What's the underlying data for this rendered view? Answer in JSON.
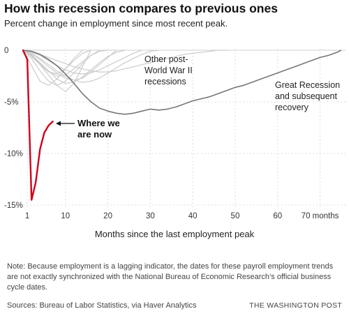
{
  "chart_data": {
    "type": "line",
    "title": "How this recession compares to previous ones",
    "subtitle": "Percent change in employment since most recent peak.",
    "xlabel": "Months since the last employment peak",
    "ylabel": "",
    "xlim": [
      0,
      76
    ],
    "ylim": [
      -15,
      0
    ],
    "x_ticks": [
      {
        "value": 1,
        "label": "1"
      },
      {
        "value": 10,
        "label": "10"
      },
      {
        "value": 20,
        "label": "20"
      },
      {
        "value": 30,
        "label": "30"
      },
      {
        "value": 40,
        "label": "40"
      },
      {
        "value": 50,
        "label": "50"
      },
      {
        "value": 60,
        "label": "60"
      },
      {
        "value": 70,
        "label": "70 months"
      }
    ],
    "y_ticks": [
      {
        "value": 0,
        "label": "0"
      },
      {
        "value": -5,
        "label": "-5%"
      },
      {
        "value": -10,
        "label": "-10%"
      },
      {
        "value": -15,
        "label": "-15%"
      }
    ],
    "grid": true,
    "series": [
      {
        "name": "Where we are now",
        "color": "#d0021b",
        "x": [
          0,
          1,
          2,
          3,
          4,
          5,
          6,
          7
        ],
        "y": [
          0,
          -0.9,
          -14.5,
          -12.8,
          -9.6,
          -8.0,
          -7.3,
          -6.9
        ]
      },
      {
        "name": "Great Recession and subsequent recovery",
        "color": "#777777",
        "x": [
          0,
          2,
          4,
          6,
          8,
          10,
          12,
          14,
          16,
          18,
          20,
          22,
          24,
          26,
          28,
          30,
          32,
          34,
          36,
          38,
          40,
          42,
          44,
          46,
          48,
          50,
          52,
          54,
          56,
          58,
          60,
          62,
          64,
          66,
          68,
          70,
          72,
          74,
          75
        ],
        "y": [
          0,
          -0.1,
          -0.4,
          -0.9,
          -1.5,
          -2.3,
          -3.2,
          -4.2,
          -5.0,
          -5.6,
          -5.9,
          -6.1,
          -6.2,
          -6.1,
          -5.9,
          -5.7,
          -5.8,
          -5.7,
          -5.5,
          -5.2,
          -4.9,
          -4.7,
          -4.5,
          -4.2,
          -3.9,
          -3.6,
          -3.4,
          -3.1,
          -2.8,
          -2.5,
          -2.2,
          -1.9,
          -1.6,
          -1.3,
          -1.0,
          -0.7,
          -0.5,
          -0.2,
          0.0
        ]
      },
      {
        "name": "Other post-World War II recessions",
        "color": "#cccccc",
        "lines": [
          {
            "x": [
              0,
              2,
              4,
              6,
              8,
              10,
              12,
              14,
              16,
              18,
              20,
              22,
              24
            ],
            "y": [
              0,
              -0.4,
              -1.2,
              -2.0,
              -2.8,
              -3.2,
              -3.1,
              -2.6,
              -1.9,
              -1.2,
              -0.6,
              -0.2,
              0.0
            ]
          },
          {
            "x": [
              0,
              2,
              4,
              6,
              8,
              10,
              12,
              14,
              16,
              18
            ],
            "y": [
              0,
              -0.8,
              -2.0,
              -3.0,
              -3.4,
              -3.0,
              -2.2,
              -1.3,
              -0.5,
              0.0
            ]
          },
          {
            "x": [
              0,
              2,
              4,
              6,
              8,
              10,
              12,
              14
            ],
            "y": [
              0,
              -1.5,
              -3.0,
              -3.4,
              -2.8,
              -1.8,
              -0.8,
              0.0
            ]
          },
          {
            "x": [
              0,
              2,
              4,
              6,
              8,
              10,
              12,
              14,
              16,
              18,
              20,
              22
            ],
            "y": [
              0,
              -0.3,
              -0.9,
              -1.6,
              -2.2,
              -2.7,
              -2.9,
              -2.7,
              -2.1,
              -1.4,
              -0.7,
              0.0
            ]
          },
          {
            "x": [
              0,
              2,
              4,
              6,
              8,
              10,
              12,
              14,
              16,
              18,
              20,
              22,
              24,
              26,
              28
            ],
            "y": [
              0,
              -0.2,
              -0.5,
              -1.0,
              -1.5,
              -1.9,
              -2.2,
              -2.3,
              -2.2,
              -1.9,
              -1.5,
              -1.1,
              -0.7,
              -0.3,
              0.0
            ]
          },
          {
            "x": [
              0,
              2,
              4,
              6,
              8,
              10,
              12,
              14,
              16,
              18,
              20,
              22,
              24,
              26,
              28,
              30,
              32,
              34,
              36,
              38,
              40,
              42,
              44,
              46,
              48
            ],
            "y": [
              0,
              -0.2,
              -0.4,
              -0.7,
              -1.0,
              -1.3,
              -1.6,
              -1.8,
              -2.0,
              -2.1,
              -2.1,
              -2.0,
              -1.8,
              -1.6,
              -1.4,
              -1.2,
              -1.0,
              -0.8,
              -0.6,
              -0.4,
              -0.3,
              -0.2,
              -0.1,
              0.0,
              0.0
            ]
          },
          {
            "x": [
              0,
              2,
              4,
              6,
              8,
              10,
              12,
              14,
              16,
              18,
              20
            ],
            "y": [
              0,
              -0.5,
              -1.3,
              -2.0,
              -2.5,
              -2.4,
              -1.8,
              -1.1,
              -0.5,
              -0.1,
              0.0
            ]
          },
          {
            "x": [
              0,
              2,
              4,
              6,
              8,
              10,
              12,
              14,
              16
            ],
            "y": [
              0,
              -0.6,
              -1.4,
              -2.1,
              -2.3,
              -1.8,
              -1.0,
              -0.3,
              0.0
            ]
          },
          {
            "x": [
              0,
              2,
              4,
              6,
              8,
              10,
              12,
              14,
              16,
              18,
              20,
              22,
              24,
              26,
              28,
              30,
              32
            ],
            "y": [
              0,
              -0.3,
              -0.8,
              -1.4,
              -2.0,
              -2.5,
              -2.9,
              -3.1,
              -3.0,
              -2.7,
              -2.2,
              -1.7,
              -1.2,
              -0.8,
              -0.4,
              -0.1,
              0.0
            ]
          },
          {
            "x": [
              0,
              2,
              4,
              6,
              8,
              10,
              12,
              14,
              16
            ],
            "y": [
              0,
              -0.5,
              -1.4,
              -2.4,
              -3.4,
              -4.0,
              -3.2,
              -1.6,
              0.0
            ]
          }
        ]
      }
    ],
    "annotations": {
      "now_line1": "Where we",
      "now_line2": "are now",
      "other_line1": "Other post-",
      "other_line2": "World War II",
      "other_line3": "recessions",
      "great_line1": "Great Recession",
      "great_line2": "and subsequent",
      "great_line3": "recovery"
    }
  },
  "note": "Note: Because employment is a lagging indicator, the dates for these payroll employment trends are not exactly synchronized with the National Bureau of Economic Research’s official business cycle dates.",
  "source": "Sources: Bureau of Labor Statistics, via Haver Analytics",
  "brand": "THE WASHINGTON POST"
}
